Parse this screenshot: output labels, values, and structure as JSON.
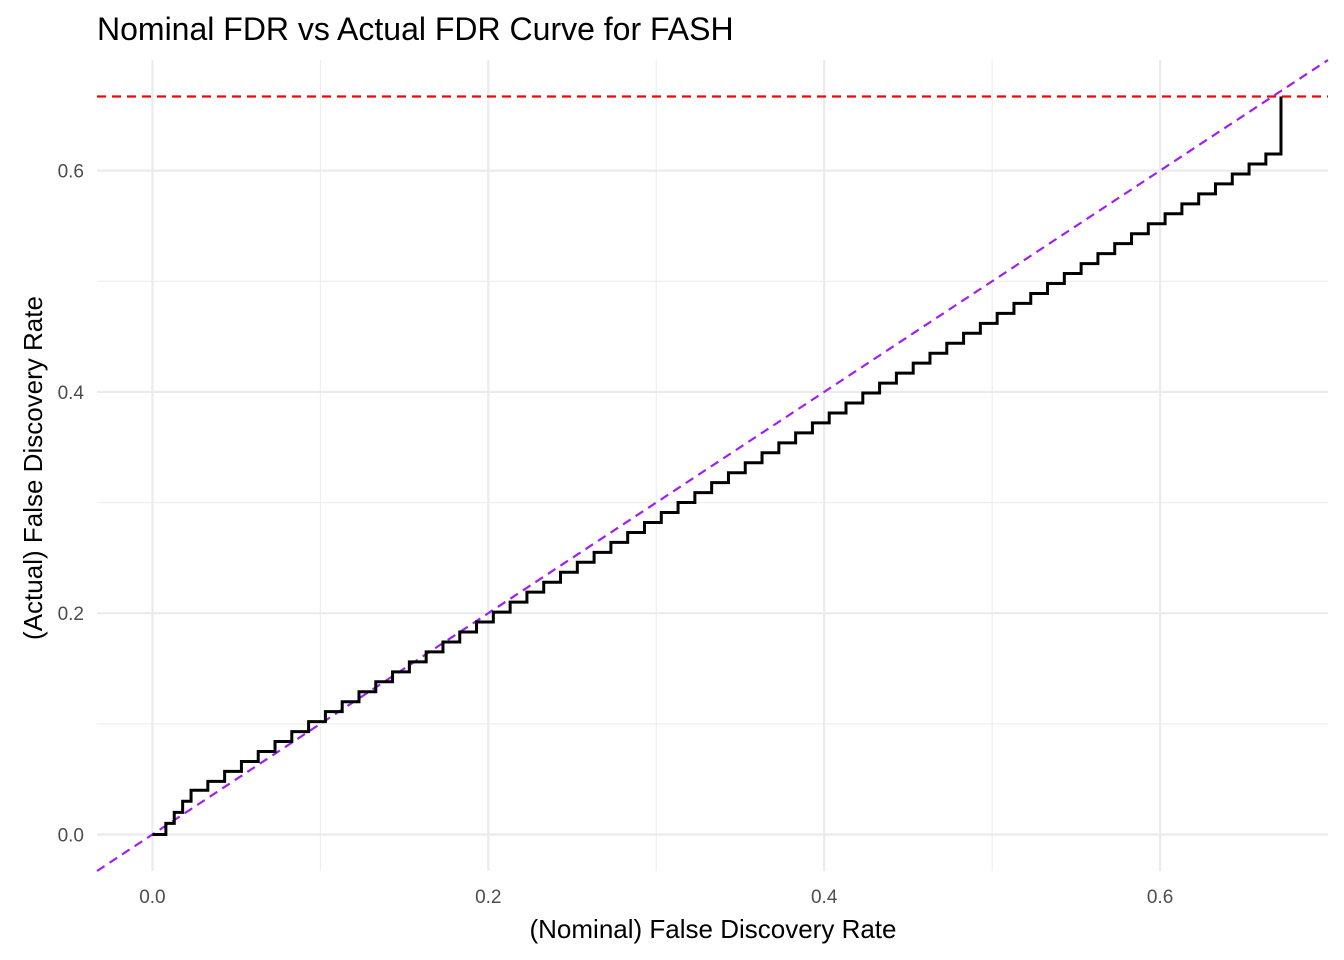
{
  "chart_data": {
    "type": "line",
    "title": "Nominal FDR vs Actual FDR Curve for FASH",
    "xlabel": "(Nominal) False Discovery Rate",
    "ylabel": "(Actual) False Discovery Rate",
    "xlim": [
      -0.033,
      0.7
    ],
    "ylim": [
      -0.033,
      0.7
    ],
    "x_ticks": [
      "0.0",
      "0.2",
      "0.4",
      "0.6"
    ],
    "y_ticks": [
      "0.0",
      "0.2",
      "0.4",
      "0.6"
    ],
    "x_tick_values": [
      0,
      0.2,
      0.4,
      0.6
    ],
    "y_tick_values": [
      0,
      0.2,
      0.4,
      0.6
    ],
    "grid": true,
    "series": [
      {
        "style": "step",
        "color": "#000000",
        "x": [
          0.0,
          0.008,
          0.013,
          0.018,
          0.023,
          0.033,
          0.043,
          0.053,
          0.063,
          0.073,
          0.083,
          0.093,
          0.103,
          0.113,
          0.123,
          0.133,
          0.143,
          0.153,
          0.163,
          0.173,
          0.183,
          0.193,
          0.203,
          0.213,
          0.223,
          0.233,
          0.243,
          0.253,
          0.263,
          0.273,
          0.283,
          0.293,
          0.303,
          0.313,
          0.323,
          0.333,
          0.343,
          0.353,
          0.363,
          0.373,
          0.383,
          0.393,
          0.403,
          0.413,
          0.423,
          0.433,
          0.443,
          0.453,
          0.463,
          0.473,
          0.483,
          0.493,
          0.503,
          0.513,
          0.523,
          0.533,
          0.543,
          0.553,
          0.563,
          0.573,
          0.583,
          0.593,
          0.603,
          0.613,
          0.623,
          0.633,
          0.643,
          0.653,
          0.663,
          0.672
        ],
        "y": [
          0.0,
          0.01,
          0.02,
          0.03,
          0.04,
          0.048,
          0.057,
          0.066,
          0.075,
          0.084,
          0.093,
          0.102,
          0.111,
          0.12,
          0.129,
          0.138,
          0.147,
          0.156,
          0.165,
          0.174,
          0.183,
          0.192,
          0.201,
          0.21,
          0.219,
          0.228,
          0.237,
          0.246,
          0.255,
          0.264,
          0.273,
          0.282,
          0.291,
          0.3,
          0.309,
          0.318,
          0.327,
          0.336,
          0.345,
          0.354,
          0.363,
          0.372,
          0.381,
          0.39,
          0.399,
          0.408,
          0.417,
          0.426,
          0.435,
          0.444,
          0.453,
          0.462,
          0.471,
          0.48,
          0.489,
          0.498,
          0.507,
          0.516,
          0.525,
          0.534,
          0.543,
          0.552,
          0.561,
          0.57,
          0.579,
          0.588,
          0.597,
          0.606,
          0.615,
          0.667
        ]
      }
    ],
    "reference_lines": [
      {
        "type": "diagonal",
        "slope": 1,
        "intercept": 0,
        "color": "#a020f0",
        "dashed": true
      },
      {
        "type": "horizontal",
        "y": 0.667,
        "color": "#ff0000",
        "dashed": true
      }
    ]
  }
}
